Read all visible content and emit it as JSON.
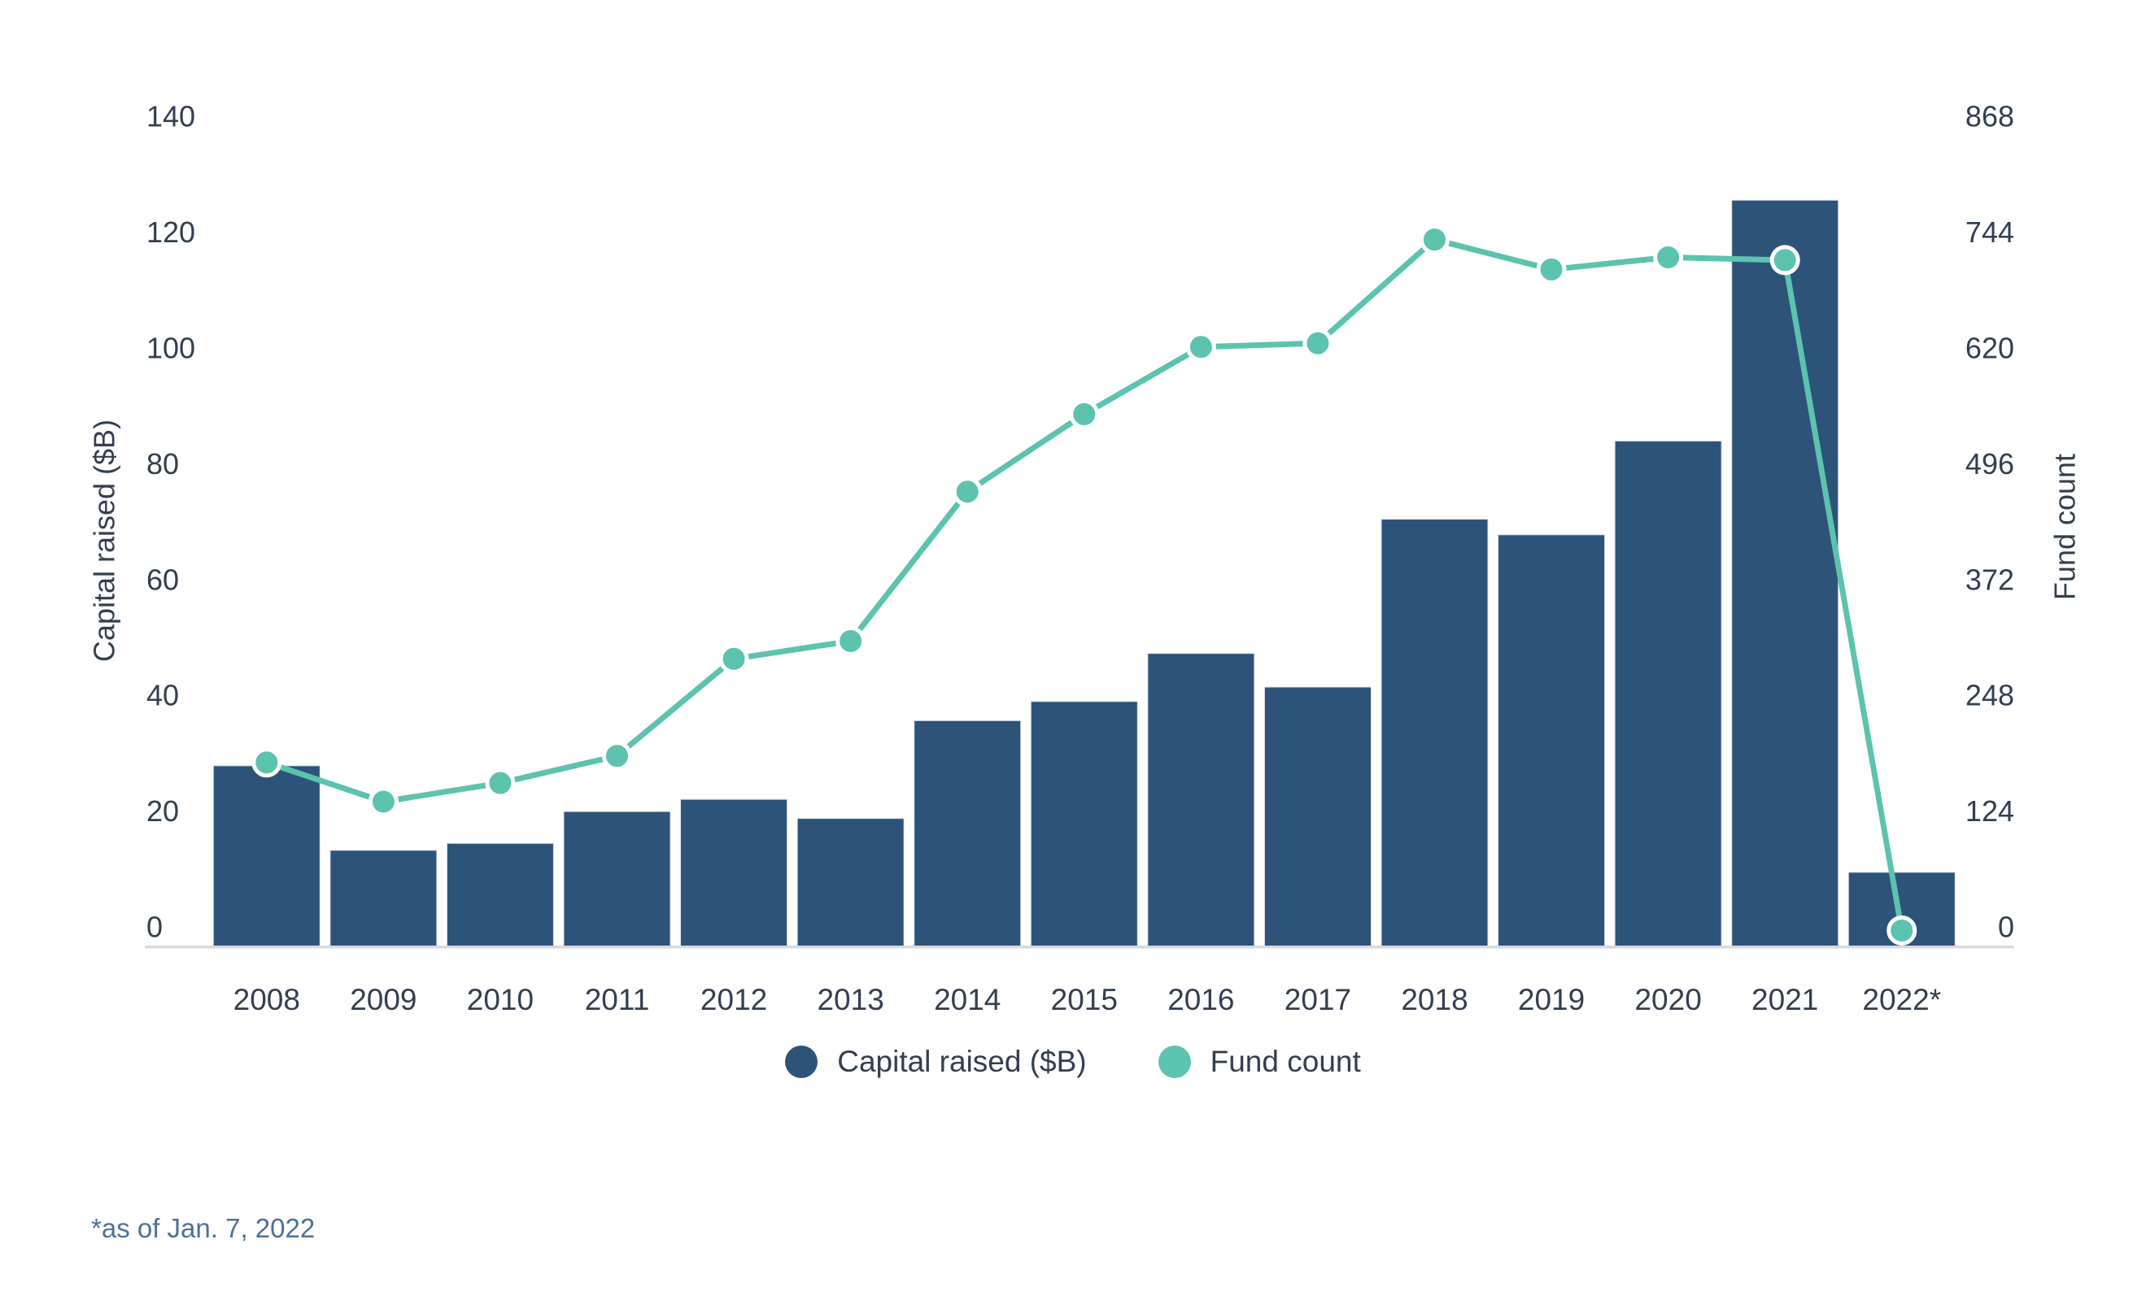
{
  "chart_data": {
    "type": "bar",
    "subtype": "dual-axis combo (columns + line)",
    "categories": [
      "2008",
      "2009",
      "2010",
      "2011",
      "2012",
      "2013",
      "2014",
      "2015",
      "2016",
      "2017",
      "2018",
      "2019",
      "2020",
      "2021",
      "2022*"
    ],
    "series": [
      {
        "name": "Capital raised ($B)",
        "type": "bar",
        "axis": "left",
        "values": [
          31.2,
          16.6,
          17.8,
          23.3,
          25.4,
          22.1,
          39.0,
          42.3,
          50.6,
          44.8,
          73.8,
          71.1,
          87.3,
          128.9,
          12.8
        ]
      },
      {
        "name": "Fund count",
        "type": "line",
        "axis": "right",
        "values": [
          197,
          155,
          175,
          204,
          308,
          327,
          487,
          570,
          642,
          646,
          757,
          725,
          738,
          735,
          17
        ]
      }
    ],
    "title": "",
    "xlabel": "",
    "ylabel_left": "Capital raised ($B)",
    "ylabel_right": "Fund count",
    "ylim_left": [
      0,
      140
    ],
    "ylim_right": [
      0,
      868
    ],
    "yticks_left": [
      0,
      20,
      40,
      60,
      80,
      100,
      120,
      140
    ],
    "yticks_right": [
      0,
      124,
      248,
      372,
      496,
      620,
      744,
      868
    ],
    "grid": false,
    "legend_position": "bottom",
    "footnote": "*as of Jan. 7, 2022",
    "colors": {
      "bar": "#2d5379",
      "bar_edge": "#dbe2ea",
      "line": "#5cc3ae",
      "point_fill": "#5cc3ae",
      "point_ring": "#ffffff",
      "axis_text": "#333f4e",
      "axis_line": "#d9d9dd",
      "footnote_text": "#4d7195",
      "background": "#ffffff"
    }
  }
}
